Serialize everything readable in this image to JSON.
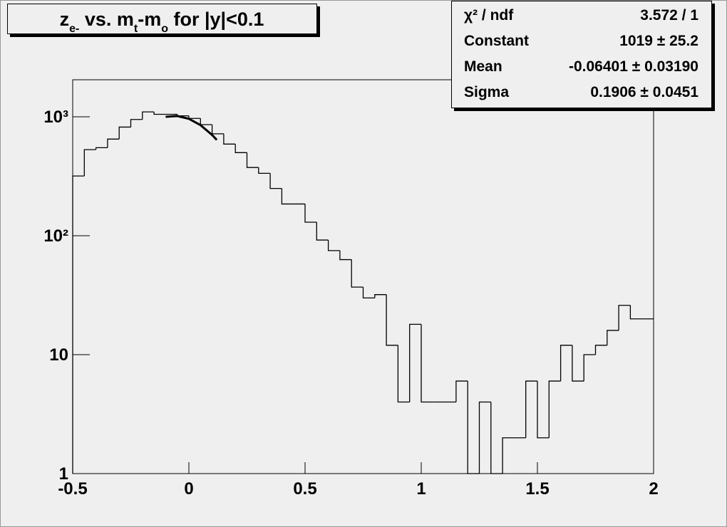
{
  "chart_data": {
    "type": "histogram",
    "title": [
      {
        "text": "z"
      },
      {
        "text": "e-",
        "sub": true
      },
      {
        "text": " vs. m"
      },
      {
        "text": "t",
        "sub": true
      },
      {
        "text": "-m"
      },
      {
        "text": "o",
        "sub": true
      },
      {
        "text": " for |y|<0.1"
      }
    ],
    "bins": [
      -0.5,
      -0.45,
      -0.4,
      -0.35,
      -0.3,
      -0.25,
      -0.2,
      -0.15,
      -0.1,
      -0.05,
      0,
      0.05,
      0.1,
      0.15,
      0.2,
      0.25,
      0.3,
      0.35,
      0.4,
      0.45,
      0.5,
      0.55,
      0.6,
      0.65,
      0.7,
      0.75,
      0.8,
      0.85,
      0.9,
      0.95,
      1,
      1.05,
      1.1,
      1.15,
      1.2,
      1.25,
      1.3,
      1.35,
      1.4,
      1.45,
      1.5,
      1.55,
      1.6,
      1.65,
      1.7,
      1.75,
      1.8,
      1.85,
      1.9,
      1.95,
      2
    ],
    "values": [
      318,
      530,
      550,
      650,
      820,
      950,
      1100,
      1050,
      1050,
      1020,
      970,
      860,
      720,
      590,
      500,
      375,
      335,
      250,
      185,
      185,
      130,
      92,
      75,
      63,
      37,
      30,
      32,
      12,
      4,
      18,
      4,
      4,
      4,
      6,
      0,
      4,
      0,
      2,
      2,
      6,
      2,
      6,
      12,
      6,
      10,
      12,
      16,
      26,
      20,
      20
    ],
    "color": "#000000",
    "fit": {
      "color": "#000000",
      "x": [
        -0.1,
        -0.05,
        0,
        0.05,
        0.1,
        0.12
      ],
      "values": [
        1001,
        1016,
        963,
        852,
        704,
        640
      ]
    },
    "xlim": [
      -0.5,
      2
    ],
    "xticks": [
      -0.5,
      0,
      0.5,
      1,
      1.5,
      2
    ],
    "ylim": [
      1,
      2050
    ],
    "yticks": [
      1,
      10,
      {
        "value": 100,
        "label": "10²"
      },
      {
        "value": 1000,
        "label": "10³"
      }
    ],
    "log_y": true,
    "grid": false,
    "stats": {
      "rows": [
        [
          "χ² / ndf",
          "3.572 / 1"
        ],
        [
          "Constant",
          "1019 ± 25.2"
        ],
        [
          "Mean",
          "-0.06401 ± 0.03190"
        ],
        [
          "Sigma",
          "0.1906 ± 0.0451"
        ]
      ]
    }
  }
}
